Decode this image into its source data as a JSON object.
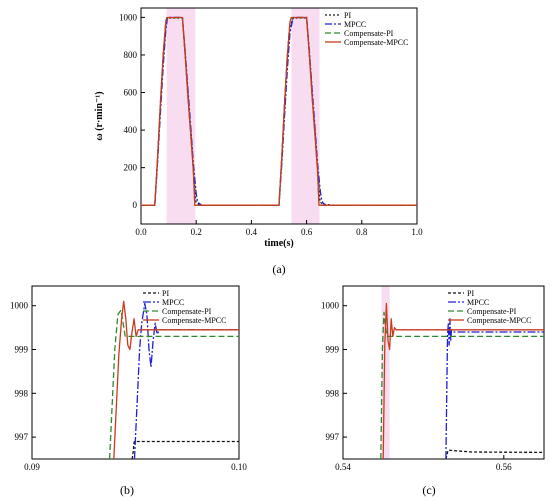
{
  "chart_data": [
    {
      "type": "line",
      "caption": "(a)",
      "xlabel": "time(s)",
      "ylabel": "ω (r·min⁻¹)",
      "xlim": [
        0,
        1.0
      ],
      "ylim": [
        -100,
        1050
      ],
      "xticks": [
        "0.0",
        "0.2",
        "0.4",
        "0.6",
        "0.8",
        "1.0"
      ],
      "yticks": [
        "0",
        "200",
        "400",
        "600",
        "800",
        "1000"
      ],
      "legend": "top-right",
      "series": [
        {
          "name": "PI",
          "color": "#1a1a1a",
          "dash": "2,2",
          "x": [
            0,
            0.05,
            0.06,
            0.07,
            0.08,
            0.09,
            0.093,
            0.15,
            0.16,
            0.17,
            0.18,
            0.19,
            0.197,
            0.2,
            0.21,
            0.22,
            0.25,
            0.5,
            0.51,
            0.52,
            0.53,
            0.54,
            0.55,
            0.553,
            0.6,
            0.61,
            0.62,
            0.63,
            0.64,
            0.647,
            0.65,
            0.66,
            0.7,
            1.0
          ],
          "y": [
            0,
            0,
            250,
            520,
            780,
            950,
            997,
            997,
            800,
            600,
            400,
            200,
            40,
            15,
            5,
            0,
            0,
            0,
            250,
            520,
            780,
            950,
            993,
            997,
            997,
            800,
            600,
            400,
            200,
            40,
            15,
            5,
            0,
            0
          ]
        },
        {
          "name": "MPCC",
          "color": "#1f1fd6",
          "dash": "7,2,2,2",
          "x": [
            0,
            0.05,
            0.06,
            0.07,
            0.08,
            0.09,
            0.096,
            0.15,
            0.16,
            0.17,
            0.18,
            0.19,
            0.2,
            0.205,
            0.21,
            0.22,
            0.25,
            0.5,
            0.51,
            0.52,
            0.53,
            0.54,
            0.55,
            0.553,
            0.6,
            0.61,
            0.62,
            0.63,
            0.64,
            0.65,
            0.655,
            0.66,
            0.67,
            0.7,
            1.0
          ],
          "y": [
            0,
            0,
            230,
            480,
            730,
            930,
            1000,
            1000,
            820,
            620,
            420,
            220,
            60,
            20,
            10,
            0,
            0,
            0,
            220,
            470,
            720,
            920,
            990,
            1000,
            1000,
            820,
            620,
            420,
            220,
            70,
            25,
            10,
            0,
            0,
            0
          ]
        },
        {
          "name": "Compensate-PI",
          "color": "#2b8a2b",
          "dash": "6,3",
          "x": [
            0,
            0.05,
            0.06,
            0.07,
            0.08,
            0.09,
            0.094,
            0.15,
            0.16,
            0.17,
            0.18,
            0.19,
            0.195,
            0.25,
            0.5,
            0.51,
            0.52,
            0.53,
            0.54,
            0.545,
            0.6,
            0.61,
            0.62,
            0.63,
            0.64,
            0.645,
            0.7,
            1.0
          ],
          "y": [
            0,
            0,
            260,
            540,
            800,
            980,
            999,
            999,
            800,
            580,
            380,
            180,
            0,
            0,
            0,
            260,
            540,
            800,
            980,
            999,
            999,
            800,
            580,
            380,
            180,
            0,
            0,
            0
          ]
        },
        {
          "name": "Compensate-MPCC",
          "color": "#c83a1e",
          "dash": "",
          "x": [
            0,
            0.05,
            0.06,
            0.07,
            0.08,
            0.09,
            0.095,
            0.15,
            0.16,
            0.17,
            0.18,
            0.19,
            0.195,
            0.25,
            0.5,
            0.51,
            0.52,
            0.53,
            0.54,
            0.545,
            0.6,
            0.61,
            0.62,
            0.63,
            0.64,
            0.645,
            0.7,
            1.0
          ],
          "y": [
            0,
            0,
            255,
            530,
            790,
            975,
            999.5,
            999.5,
            800,
            580,
            380,
            180,
            0,
            0,
            0,
            255,
            530,
            790,
            975,
            999.5,
            999.5,
            800,
            580,
            380,
            180,
            0,
            0,
            0
          ]
        }
      ]
    },
    {
      "type": "line",
      "caption": "(b)",
      "xlim": [
        0.09,
        0.1
      ],
      "ylim": [
        996.5,
        1000.45
      ],
      "xticks": [
        "0.09",
        "0.10"
      ],
      "yticks": [
        "997",
        "998",
        "999",
        "1000"
      ],
      "legend": "top-right",
      "series": [
        {
          "name": "PI",
          "color": "#111111",
          "dash": "3,2",
          "x": [
            0.09484,
            0.0949,
            0.09492,
            0.09495,
            0.095,
            0.1
          ],
          "y": [
            996.5,
            996.7,
            996.85,
            996.9,
            996.9,
            996.9
          ]
        },
        {
          "name": "MPCC",
          "color": "#1f1fd6",
          "dash": "8,2,2,2",
          "x": [
            0.09495,
            0.0952,
            0.0953,
            0.09545,
            0.09555,
            0.09565,
            0.09575,
            0.09585,
            0.09595,
            0.09605,
            0.09615,
            0.1
          ],
          "y": [
            996.5,
            999.0,
            999.6,
            1000.05,
            999.8,
            999.0,
            998.6,
            999.2,
            999.6,
            999.35,
            999.45,
            999.45
          ]
        },
        {
          "name": "Compensate-PI",
          "color": "#2b8a2b",
          "dash": "6,3",
          "x": [
            0.09375,
            0.094,
            0.09415,
            0.0943,
            0.0944,
            0.0945,
            0.09465,
            0.1
          ],
          "y": [
            996.5,
            999.0,
            999.8,
            999.9,
            999.6,
            999.3,
            999.3,
            999.3
          ]
        },
        {
          "name": "Compensate-MPCC",
          "color": "#c83a1e",
          "dash": "",
          "x": [
            0.09395,
            0.0942,
            0.09433,
            0.09443,
            0.09453,
            0.09463,
            0.09473,
            0.09483,
            0.09493,
            0.09503,
            0.09513,
            0.09523,
            0.1
          ],
          "y": [
            996.5,
            998.9,
            999.7,
            1000.1,
            999.7,
            999.1,
            999.0,
            999.4,
            999.7,
            999.3,
            999.45,
            999.45,
            999.45
          ]
        }
      ]
    },
    {
      "type": "line",
      "caption": "(c)",
      "xlim": [
        0.54,
        0.565
      ],
      "ylim": [
        996.5,
        1000.45
      ],
      "xticks": [
        "0.54",
        "0.56"
      ],
      "yticks": [
        "997",
        "998",
        "999",
        "1000"
      ],
      "legend": "top-right",
      "series": [
        {
          "name": "PI",
          "color": "#111111",
          "dash": "3,2",
          "x": [
            0.5528,
            0.553,
            0.5531,
            0.5545,
            0.556,
            0.565
          ],
          "y": [
            996.5,
            996.65,
            996.7,
            996.68,
            996.66,
            996.65
          ]
        },
        {
          "name": "MPCC",
          "color": "#1f1fd6",
          "dash": "8,2,2,2",
          "x": [
            0.5528,
            0.553,
            0.5531,
            0.5532,
            0.5533,
            0.5534,
            0.5535,
            0.5537,
            0.565
          ],
          "y": [
            996.5,
            999.3,
            999.6,
            999.1,
            999.7,
            999.2,
            999.45,
            999.4,
            999.4
          ]
        },
        {
          "name": "Compensate-PI",
          "color": "#2b8a2b",
          "dash": "6,3",
          "x": [
            0.5447,
            0.5449,
            0.5451,
            0.5453,
            0.5455,
            0.5458,
            0.565
          ],
          "y": [
            996.5,
            999.0,
            999.85,
            999.5,
            999.3,
            999.3,
            999.3
          ]
        },
        {
          "name": "Compensate-MPCC",
          "color": "#c83a1e",
          "dash": "",
          "x": [
            0.545,
            0.5452,
            0.5454,
            0.5456,
            0.5458,
            0.546,
            0.5462,
            0.5464,
            0.5466,
            0.5468,
            0.565
          ],
          "y": [
            996.5,
            999.1,
            1000.05,
            999.2,
            999.0,
            999.7,
            999.3,
            999.5,
            999.45,
            999.45,
            999.45
          ]
        }
      ]
    }
  ],
  "colors": {
    "highlight": "#f3c6e6"
  }
}
